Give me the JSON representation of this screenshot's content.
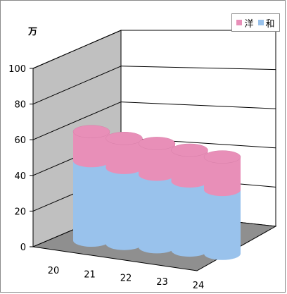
{
  "chart_data": {
    "type": "bar",
    "style": "3d-cylinder-stacked",
    "unit_label": "万",
    "categories": [
      "20",
      "21",
      "22",
      "23",
      "24"
    ],
    "series": [
      {
        "name": "和",
        "color": "#99c2ec",
        "values": [
          46,
          44,
          42,
          40,
          37
        ]
      },
      {
        "name": "洋",
        "color": "#e88fb8",
        "values": [
          17,
          17,
          18,
          18,
          19
        ]
      }
    ],
    "ylim": [
      0,
      100
    ],
    "yticks": [
      "0",
      "20",
      "40",
      "60",
      "80",
      "100"
    ],
    "grid": true,
    "legend_position": "top-right"
  }
}
